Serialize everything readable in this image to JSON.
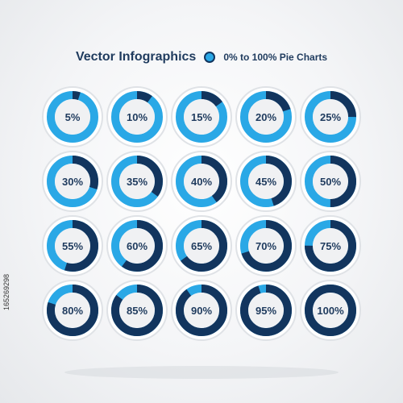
{
  "header": {
    "title": "Vector Infographics",
    "subtitle": "0% to 100% Pie Charts"
  },
  "side_code": "165269298",
  "colors": {
    "fill": "#12355e",
    "track": "#2aa8e6",
    "inner": "#f0f1f3",
    "outer_ring": "#dfe2e6",
    "label": "#1f3b5e"
  },
  "chart_data": {
    "type": "pie",
    "title": "Vector Infographics",
    "subtitle": "0% to 100% Pie Charts",
    "categories": [
      "5%",
      "10%",
      "15%",
      "20%",
      "25%",
      "30%",
      "35%",
      "40%",
      "45%",
      "50%",
      "55%",
      "60%",
      "65%",
      "70%",
      "75%",
      "80%",
      "85%",
      "90%",
      "95%",
      "100%"
    ],
    "values": [
      5,
      10,
      15,
      20,
      25,
      30,
      35,
      40,
      45,
      50,
      55,
      60,
      65,
      70,
      75,
      80,
      85,
      90,
      95,
      100
    ],
    "grid": {
      "rows": 4,
      "columns": 5
    }
  }
}
